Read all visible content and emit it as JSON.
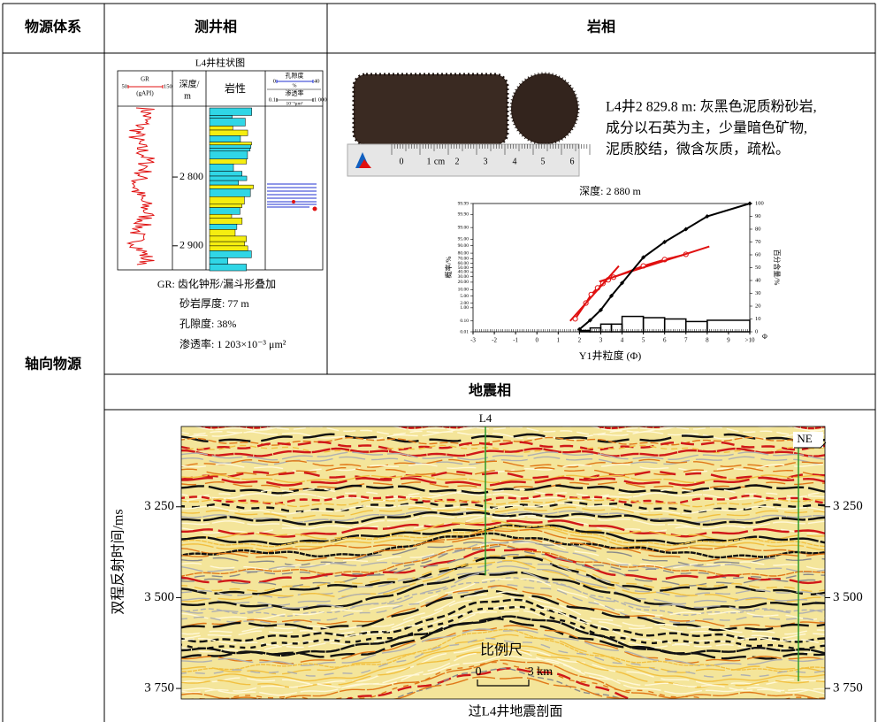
{
  "table": {
    "headers": [
      "物源体系",
      "测井相",
      "岩相"
    ],
    "row_label": "轴向物源",
    "seismic_header": "地震相"
  },
  "well_log": {
    "title": "L4井柱状图",
    "gr_label": "GR",
    "gr_unit": "(gAPI)",
    "gr_ticks": [
      50,
      150
    ],
    "depth_header": [
      "深度/",
      "m"
    ],
    "lithology_header": "岩性",
    "porosity_header": "孔隙度",
    "porosity_unit": "%",
    "porosity_ticks": [
      0,
      40
    ],
    "permeability_header": "渗透率",
    "permeability_unit": "10⁻³μm²",
    "permeability_ticks": [
      0.1,
      {
        "value": 1000,
        "label": "1 000"
      }
    ],
    "depth_lim": [
      2697,
      2935
    ],
    "depth_ticks": [
      {
        "value": 2800,
        "label": "2 800"
      },
      {
        "value": 2900,
        "label": "2 900"
      }
    ],
    "summary": [
      "GR: 齿化钟形/漏斗形叠加",
      "砂岩厚度: 77 m",
      "孔隙度: 38%",
      "渗透率: 1 203×10⁻³ μm²"
    ]
  },
  "core": {
    "ruler_labels": [
      "0",
      "1",
      "cm",
      "2",
      "3",
      "4",
      "5",
      "6"
    ],
    "description": [
      "L4井2 829.8 m: 灰黑色泥质粉砂岩,",
      "成分以石英为主，少量暗色矿物,",
      "泥质胶结，微含灰质，疏松。"
    ]
  },
  "grain_chart": {
    "type": "line",
    "title": "深度: 2 880 m",
    "x_label": "Y1井粒度 (Φ)",
    "x_unit": "Φ",
    "y_label": "概率/%",
    "y2_label": "百分含量/%",
    "y_scale": "probability",
    "xlim": [
      -3,
      10
    ],
    "xticks": [
      -3,
      -2,
      -1,
      0,
      1,
      2,
      3,
      4,
      5,
      6,
      7,
      8,
      9,
      {
        "value": 10,
        "label": ">10"
      }
    ],
    "ylim": [
      0.01,
      99.99
    ],
    "yticks": [
      {
        "value": 0.01,
        "label": "0.01"
      },
      {
        "value": 0.1,
        "label": "0.10"
      },
      {
        "value": 1,
        "label": "1.00"
      },
      {
        "value": 2,
        "label": "2.00"
      },
      {
        "value": 5,
        "label": "5.00"
      },
      {
        "value": 10,
        "label": "10.00"
      },
      {
        "value": 20,
        "label": "20.00"
      },
      {
        "value": 30,
        "label": "30.00"
      },
      {
        "value": 40,
        "label": "40.00"
      },
      {
        "value": 50,
        "label": "50.00"
      },
      {
        "value": 60,
        "label": "60.00"
      },
      {
        "value": 70,
        "label": "70.00"
      },
      {
        "value": 80,
        "label": "80.00"
      },
      {
        "value": 90,
        "label": "90.00"
      },
      {
        "value": 95,
        "label": "95.00"
      },
      {
        "value": 99,
        "label": "99.00"
      },
      {
        "value": 99.9,
        "label": "99.90"
      },
      {
        "value": 99.99,
        "label": "99.99"
      }
    ],
    "y2lim": [
      0,
      100
    ],
    "y2ticks": [
      0,
      10,
      20,
      30,
      40,
      50,
      60,
      70,
      80,
      90,
      100
    ],
    "series": [
      {
        "color": "#e01010",
        "marker": "circle",
        "x": [
          1.8,
          2.3,
          2.55,
          2.85,
          3.1,
          3.35,
          3.6,
          5,
          6,
          7
        ],
        "values": [
          0.15,
          2,
          6,
          12,
          18,
          24,
          29,
          54,
          68,
          78
        ]
      },
      {
        "color": "#e01010",
        "x": [
          1.56,
          3.85
        ],
        "values": [
          0.1,
          54
        ]
      },
      {
        "color": "#e01010",
        "x": [
          2.93,
          8.1
        ],
        "values": [
          21,
          89
        ]
      },
      {
        "color": "#000000",
        "marker": "diamond",
        "axis": "y2",
        "x": [
          2,
          2.5,
          3,
          3.5,
          4,
          5,
          6,
          7,
          8,
          10
        ],
        "values": [
          2,
          9,
          17,
          28,
          38,
          58,
          70,
          80,
          90,
          100
        ]
      }
    ],
    "histogram": {
      "axis": "y2",
      "color": "#000000",
      "bins": [
        2,
        2.5,
        3,
        3.5,
        4,
        5,
        6,
        7,
        8,
        10
      ],
      "counts": [
        1,
        3,
        6,
        6,
        12,
        11,
        10,
        8,
        9
      ]
    }
  },
  "seismic": {
    "y_label": "双程反射时间/ms",
    "ylim": [
      3029,
      3779
    ],
    "yticks": [
      {
        "value": 3250,
        "label": "3 250"
      },
      {
        "value": 3500,
        "label": "3 500"
      },
      {
        "value": 3750,
        "label": "3 750"
      }
    ],
    "well_label": "L4",
    "direction": "NE",
    "scale_title": "比例尺",
    "scale_labels": [
      "0",
      "3 km"
    ],
    "caption": "过L4井地震剖面"
  }
}
